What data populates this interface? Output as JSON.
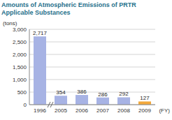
{
  "chart_data": {
    "type": "bar",
    "title": "Amounts of Atmospheric Emissions of PRTR Applicable Substances",
    "y_label": "(tons)",
    "x_label": "(FY)",
    "categories": [
      "1996",
      "2005",
      "2006",
      "2007",
      "2008",
      "2009"
    ],
    "values": [
      2717,
      354,
      386,
      286,
      292,
      127
    ],
    "value_labels": [
      "2,717",
      "354",
      "386",
      "286",
      "292",
      "127"
    ],
    "colors": [
      "#a7b3e4",
      "#a7b3e4",
      "#a7b3e4",
      "#a7b3e4",
      "#a7b3e4",
      "#f3a93c"
    ],
    "data_labels": true,
    "ylim": [
      0,
      3000
    ],
    "yticks": [
      0,
      500,
      {
        "value": 1000,
        "label": "1,000"
      },
      {
        "value": 1500,
        "label": "1,500"
      },
      {
        "value": 2000,
        "label": "2,000"
      },
      {
        "value": 2500,
        "label": "2,500"
      },
      {
        "value": 3000,
        "label": "3,000"
      }
    ],
    "grid": true
  }
}
